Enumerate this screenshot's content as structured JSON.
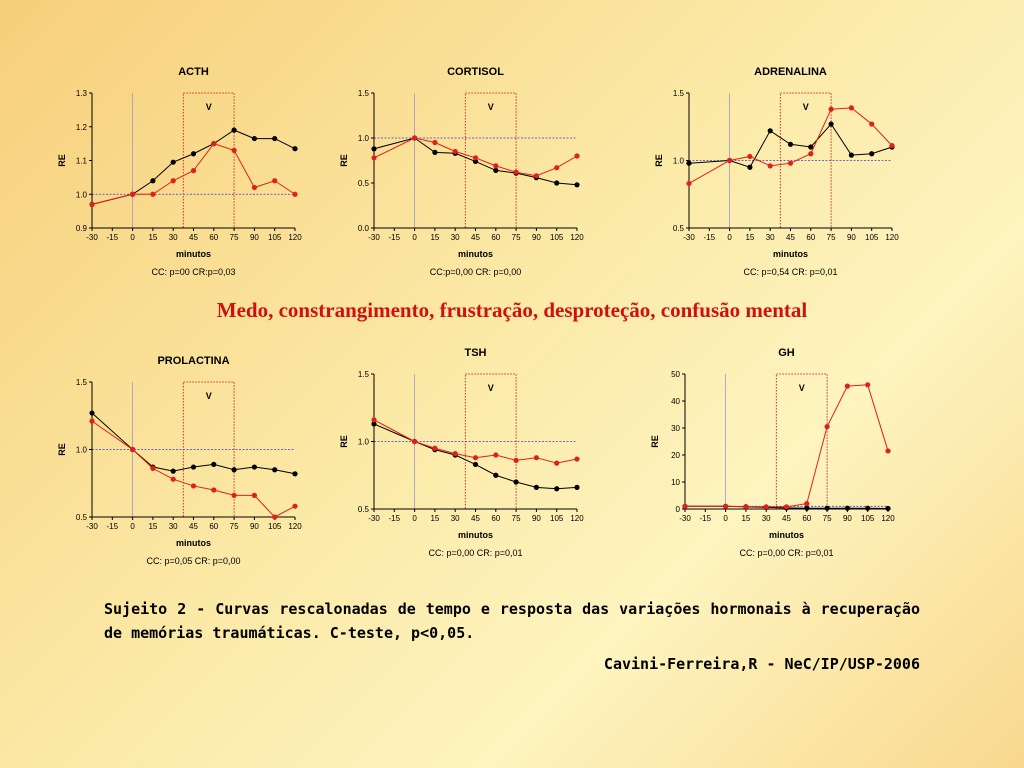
{
  "headline": "Medo, constrangimento, frustração, desproteção, confusão mental",
  "caption": "Sujeito 2 - Curvas rescalonadas de tempo e resposta das variações hormonais à recuperação de memórias traumáticas. C-teste, p<0,05.",
  "credit": "Cavini-Ferreira,R - NeC/IP/USP-2006",
  "colors": {
    "series_a": "#000000",
    "series_b": "#e0201a",
    "reference_line": "#3b3bd6",
    "window_box": "#d03030"
  },
  "chart_data": [
    {
      "type": "line",
      "title": "ACTH",
      "xlabel": "minutos",
      "ylabel": "RE",
      "stats": "CC: p=00 CR:p=0,03",
      "window_label": "V",
      "window": [
        37.5,
        75
      ],
      "x": [
        -30,
        0,
        15,
        30,
        45,
        60,
        75,
        90,
        105,
        120
      ],
      "xticks": [
        "-30",
        "-15",
        "0",
        "15",
        "30",
        "45",
        "60",
        "75",
        "90",
        "105",
        "120"
      ],
      "ylim": [
        0.9,
        1.3
      ],
      "yticks": [
        "0.9",
        "1.0",
        "1.1",
        "1.2",
        "1.3"
      ],
      "reference": 1.0,
      "series": [
        {
          "values": [
            0.97,
            1.0,
            1.04,
            1.095,
            1.12,
            1.15,
            1.19,
            1.165,
            1.165,
            1.135
          ]
        },
        {
          "values": [
            0.97,
            1.0,
            1.0,
            1.04,
            1.07,
            1.15,
            1.13,
            1.02,
            1.04,
            1.0
          ]
        }
      ]
    },
    {
      "type": "line",
      "title": "CORTISOL",
      "xlabel": "minutos",
      "ylabel": "RE",
      "stats": "CC:p=0,00 CR: p=0,00",
      "window_label": "V",
      "window": [
        37.5,
        75
      ],
      "x": [
        -30,
        0,
        15,
        30,
        45,
        60,
        75,
        90,
        105,
        120
      ],
      "xticks": [
        "-30",
        "-15",
        "0",
        "15",
        "30",
        "45",
        "60",
        "75",
        "90",
        "105",
        "120"
      ],
      "ylim": [
        0.0,
        1.5
      ],
      "yticks": [
        "0.0",
        "0.5",
        "1.0",
        "1.5"
      ],
      "reference": 1.0,
      "series": [
        {
          "values": [
            0.88,
            1.0,
            0.84,
            0.83,
            0.74,
            0.64,
            0.61,
            0.56,
            0.5,
            0.48
          ]
        },
        {
          "values": [
            0.78,
            1.0,
            0.95,
            0.85,
            0.78,
            0.69,
            0.62,
            0.58,
            0.67,
            0.8
          ]
        }
      ]
    },
    {
      "type": "line",
      "title": "ADRENALINA",
      "xlabel": "minutos",
      "ylabel": "RE",
      "stats": "CC: p=0,54 CR: p=0,01",
      "window_label": "V",
      "window": [
        37.5,
        75
      ],
      "x": [
        -30,
        0,
        15,
        30,
        45,
        60,
        75,
        90,
        105,
        120
      ],
      "xticks": [
        "-30",
        "-15",
        "0",
        "15",
        "30",
        "45",
        "60",
        "75",
        "90",
        "105",
        "120"
      ],
      "ylim": [
        0.5,
        1.5
      ],
      "yticks": [
        "0.5",
        "1.0",
        "1.5"
      ],
      "reference": 1.0,
      "series": [
        {
          "values": [
            0.98,
            1.0,
            0.95,
            1.22,
            1.12,
            1.1,
            1.27,
            1.04,
            1.05,
            1.1
          ]
        },
        {
          "values": [
            0.83,
            1.0,
            1.03,
            0.96,
            0.98,
            1.05,
            1.38,
            1.39,
            1.27,
            1.11
          ]
        }
      ]
    },
    {
      "type": "line",
      "title": "PROLACTINA",
      "xlabel": "minutos",
      "ylabel": "RE",
      "stats": "CC: p=0,05 CR: p=0,00",
      "window_label": "V",
      "window": [
        37.5,
        75
      ],
      "x": [
        -30,
        0,
        15,
        30,
        45,
        60,
        75,
        90,
        105,
        120
      ],
      "xticks": [
        "-30",
        "-15",
        "0",
        "15",
        "30",
        "45",
        "60",
        "75",
        "90",
        "105",
        "120"
      ],
      "ylim": [
        0.5,
        1.5
      ],
      "yticks": [
        "0.5",
        "1.0",
        "1.5"
      ],
      "reference": 1.0,
      "series": [
        {
          "values": [
            1.27,
            1.0,
            0.87,
            0.84,
            0.87,
            0.89,
            0.85,
            0.87,
            0.85,
            0.82
          ]
        },
        {
          "values": [
            1.21,
            1.0,
            0.86,
            0.78,
            0.73,
            0.7,
            0.66,
            0.66,
            0.5,
            0.58
          ]
        }
      ]
    },
    {
      "type": "line",
      "title": "TSH",
      "xlabel": "minutos",
      "ylabel": "RE",
      "stats": "CC: p=0,00 CR: p=0,01",
      "window_label": "V",
      "window": [
        37.5,
        75
      ],
      "x": [
        -30,
        0,
        15,
        30,
        45,
        60,
        75,
        90,
        105,
        120
      ],
      "xticks": [
        "-30",
        "-15",
        "0",
        "15",
        "30",
        "45",
        "60",
        "75",
        "90",
        "105",
        "120"
      ],
      "ylim": [
        0.5,
        1.5
      ],
      "yticks": [
        "0.5",
        "1.0",
        "1.5"
      ],
      "reference": 1.0,
      "series": [
        {
          "values": [
            1.13,
            1.0,
            0.94,
            0.9,
            0.83,
            0.75,
            0.7,
            0.66,
            0.65,
            0.66
          ]
        },
        {
          "values": [
            1.16,
            1.0,
            0.95,
            0.91,
            0.88,
            0.9,
            0.86,
            0.88,
            0.84,
            0.87
          ]
        }
      ]
    },
    {
      "type": "line",
      "title": "GH",
      "xlabel": "minutos",
      "ylabel": "RE",
      "stats": "CC: p=0,00 CR: p=0,01",
      "window_label": "V",
      "window": [
        37.5,
        75
      ],
      "x": [
        -30,
        0,
        15,
        30,
        45,
        60,
        75,
        90,
        105,
        120
      ],
      "xticks": [
        "-30",
        "-15",
        "0",
        "15",
        "30",
        "45",
        "60",
        "75",
        "90",
        "105",
        "120"
      ],
      "ylim": [
        0,
        50
      ],
      "yticks": [
        "0",
        "10",
        "20",
        "30",
        "40",
        "50"
      ],
      "reference": 1.0,
      "series": [
        {
          "values": [
            1.0,
            1.0,
            0.8,
            0.6,
            0.4,
            0.3,
            0.3,
            0.3,
            0.3,
            0.2
          ]
        },
        {
          "values": [
            1.0,
            1.0,
            0.9,
            0.8,
            0.8,
            2.0,
            30.5,
            45.5,
            46.0,
            21.5
          ]
        }
      ]
    }
  ]
}
